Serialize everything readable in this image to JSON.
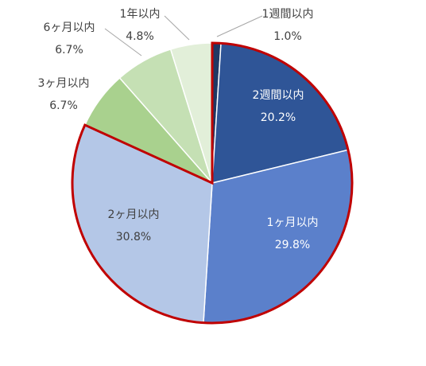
{
  "chart_data": {
    "type": "pie",
    "categories": [
      "1週間以内",
      "2週間以内",
      "1ヶ月以内",
      "2ヶ月以内",
      "3ヶ月以内",
      "6ヶ月以内",
      "1年以内"
    ],
    "values": [
      1.0,
      20.2,
      29.8,
      30.8,
      6.7,
      6.7,
      4.8
    ],
    "value_labels": [
      "1.0%",
      "20.2%",
      "29.8%",
      "30.8%",
      "6.7%",
      "6.7%",
      "4.8%"
    ],
    "colors": [
      "#1f3864",
      "#2f5597",
      "#5b80cb",
      "#b4c7e7",
      "#a9d18e",
      "#c5e0b4",
      "#e2efd9"
    ],
    "highlight_color": "#c00000"
  }
}
